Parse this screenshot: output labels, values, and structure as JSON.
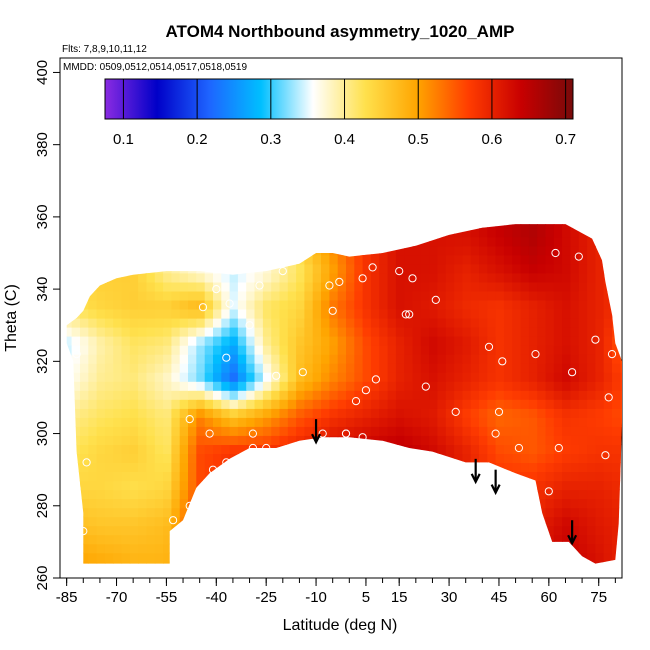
{
  "chart_data": {
    "type": "heatmap",
    "title": "ATOM4 Northbound asymmetry_1020_AMP",
    "flights_note": "Flts: 7,8,9,10,11,12",
    "dates_note": "MMDD: 0509,0512,0514,0517,0518,0519",
    "xlabel": "Latitude (deg N)",
    "ylabel": "Theta (C)",
    "xlim": [
      -87,
      82
    ],
    "ylim": [
      260,
      404
    ],
    "x_ticks": [
      -85,
      -70,
      -55,
      -40,
      -25,
      -10,
      5,
      15,
      30,
      45,
      60,
      75
    ],
    "y_ticks": [
      260,
      280,
      300,
      320,
      340,
      360,
      380,
      400
    ],
    "colorbar": {
      "range": [
        0.075,
        0.71
      ],
      "ticks": [
        0.1,
        0.2,
        0.3,
        0.4,
        0.5,
        0.6,
        0.7
      ],
      "colors": [
        "#8a2be2",
        "#0000c8",
        "#1e64ff",
        "#00bfff",
        "#ffffff",
        "#ffe14d",
        "#ffa500",
        "#ff3c00",
        "#c80000",
        "#780a0a"
      ]
    },
    "region_outline": [
      [
        -85,
        330
      ],
      [
        -82,
        332
      ],
      [
        -80,
        334
      ],
      [
        -78,
        338
      ],
      [
        -75,
        341
      ],
      [
        -70,
        343
      ],
      [
        -65,
        344
      ],
      [
        -55,
        345
      ],
      [
        -45,
        345
      ],
      [
        -35,
        344
      ],
      [
        -25,
        345
      ],
      [
        -15,
        347
      ],
      [
        -10,
        350
      ],
      [
        -5,
        350
      ],
      [
        0,
        349
      ],
      [
        10,
        350
      ],
      [
        20,
        352
      ],
      [
        30,
        355
      ],
      [
        40,
        357
      ],
      [
        50,
        358
      ],
      [
        55,
        358
      ],
      [
        65,
        358
      ],
      [
        73,
        354
      ],
      [
        76,
        348
      ],
      [
        77,
        342
      ],
      [
        79,
        333
      ],
      [
        80,
        325
      ],
      [
        82,
        320
      ],
      [
        82,
        303
      ],
      [
        81,
        275
      ],
      [
        80,
        265
      ],
      [
        74,
        264
      ],
      [
        70,
        266
      ],
      [
        66,
        270
      ],
      [
        61,
        270
      ],
      [
        58,
        278
      ],
      [
        56,
        287
      ],
      [
        50,
        289
      ],
      [
        42,
        292
      ],
      [
        35,
        292
      ],
      [
        25,
        295
      ],
      [
        18,
        296
      ],
      [
        10,
        298
      ],
      [
        0,
        299
      ],
      [
        -8,
        299
      ],
      [
        -15,
        298
      ],
      [
        -22,
        296
      ],
      [
        -30,
        296
      ],
      [
        -36,
        293
      ],
      [
        -42,
        289
      ],
      [
        -46,
        285
      ],
      [
        -50,
        276
      ],
      [
        -54,
        273
      ],
      [
        -54,
        264
      ],
      [
        -80,
        264
      ],
      [
        -80,
        278
      ],
      [
        -82,
        295
      ],
      [
        -83,
        320
      ],
      [
        -85,
        325
      ]
    ],
    "grid_field": {
      "x": [
        -85,
        -75,
        -65,
        -55,
        -45,
        -35,
        -25,
        -15,
        -5,
        5,
        15,
        25,
        35,
        45,
        55,
        65,
        75,
        82
      ],
      "y": [
        265,
        275,
        285,
        295,
        305,
        315,
        325,
        335,
        345,
        355
      ],
      "values": [
        [
          0.5,
          0.49,
          0.48,
          0.48,
          0.58,
          0.59,
          0.6,
          0.6,
          0.61,
          0.62,
          0.63,
          0.62,
          0.6,
          0.6,
          0.62,
          0.64,
          0.62,
          0.6
        ],
        [
          0.47,
          0.46,
          0.46,
          0.47,
          0.57,
          0.58,
          0.59,
          0.6,
          0.62,
          0.63,
          0.64,
          0.63,
          0.6,
          0.59,
          0.6,
          0.63,
          0.61,
          0.6
        ],
        [
          0.44,
          0.44,
          0.43,
          0.44,
          0.56,
          0.58,
          0.59,
          0.6,
          0.62,
          0.63,
          0.63,
          0.62,
          0.6,
          0.58,
          0.58,
          0.6,
          0.6,
          0.59
        ],
        [
          0.42,
          0.44,
          0.45,
          0.42,
          0.56,
          0.58,
          0.58,
          0.6,
          0.63,
          0.64,
          0.65,
          0.63,
          0.6,
          0.56,
          0.55,
          0.57,
          0.58,
          0.58
        ],
        [
          0.4,
          0.42,
          0.43,
          0.41,
          0.52,
          0.46,
          0.5,
          0.55,
          0.58,
          0.6,
          0.62,
          0.61,
          0.57,
          0.54,
          0.55,
          0.58,
          0.57,
          0.56
        ],
        [
          0.36,
          0.4,
          0.41,
          0.38,
          0.32,
          0.22,
          0.35,
          0.47,
          0.52,
          0.56,
          0.6,
          0.62,
          0.6,
          0.58,
          0.6,
          0.63,
          0.6,
          0.57
        ],
        [
          0.34,
          0.39,
          0.42,
          0.41,
          0.33,
          0.27,
          0.4,
          0.46,
          0.5,
          0.56,
          0.6,
          0.63,
          0.61,
          0.58,
          0.6,
          0.62,
          0.6,
          0.55
        ],
        [
          0.42,
          0.44,
          0.45,
          0.45,
          0.48,
          0.35,
          0.42,
          0.44,
          0.53,
          0.58,
          0.62,
          0.61,
          0.59,
          0.58,
          0.6,
          0.62,
          0.6,
          0.58
        ],
        [
          0.44,
          0.45,
          0.45,
          0.4,
          0.37,
          0.34,
          0.37,
          0.42,
          0.5,
          0.58,
          0.62,
          0.62,
          0.6,
          0.62,
          0.64,
          0.63,
          0.6,
          0.58
        ],
        [
          0.46,
          0.46,
          0.44,
          0.41,
          0.39,
          0.4,
          0.42,
          0.45,
          0.52,
          0.58,
          0.62,
          0.62,
          0.62,
          0.64,
          0.66,
          0.63,
          0.6,
          0.58
        ]
      ]
    },
    "observation_points": [
      [
        -82,
        322
      ],
      [
        -79,
        292
      ],
      [
        -80,
        273
      ],
      [
        -78,
        258
      ],
      [
        -53,
        276
      ],
      [
        -48,
        280
      ],
      [
        -48,
        304
      ],
      [
        -42,
        300
      ],
      [
        -41,
        290
      ],
      [
        -37,
        292
      ],
      [
        -40,
        340
      ],
      [
        -44,
        335
      ],
      [
        -36,
        336
      ],
      [
        -37,
        321
      ],
      [
        -30,
        330
      ],
      [
        -27,
        341
      ],
      [
        -29,
        300
      ],
      [
        -29,
        296
      ],
      [
        -25,
        296
      ],
      [
        -22,
        316
      ],
      [
        -20,
        345
      ],
      [
        -14,
        317
      ],
      [
        -8,
        300
      ],
      [
        -6,
        341
      ],
      [
        -5,
        334
      ],
      [
        -3,
        342
      ],
      [
        -1,
        300
      ],
      [
        -1,
        300
      ],
      [
        2,
        309
      ],
      [
        4,
        343
      ],
      [
        4,
        299
      ],
      [
        5,
        312
      ],
      [
        7,
        346
      ],
      [
        8,
        315
      ],
      [
        10,
        294
      ],
      [
        15,
        345
      ],
      [
        17,
        333
      ],
      [
        18,
        333
      ],
      [
        19,
        343
      ],
      [
        22,
        294
      ],
      [
        23,
        313
      ],
      [
        26,
        337
      ],
      [
        32,
        306
      ],
      [
        42,
        324
      ],
      [
        43,
        289
      ],
      [
        44,
        300
      ],
      [
        45,
        306
      ],
      [
        46,
        320
      ],
      [
        51,
        296
      ],
      [
        56,
        322
      ],
      [
        60,
        284
      ],
      [
        62,
        350
      ],
      [
        63,
        296
      ],
      [
        67,
        317
      ],
      [
        69,
        349
      ],
      [
        74,
        326
      ],
      [
        77,
        294
      ],
      [
        78,
        310
      ],
      [
        79,
        322
      ]
    ],
    "arrows_down": [
      [
        -10,
        304
      ],
      [
        38,
        293
      ],
      [
        44,
        290
      ],
      [
        67,
        276
      ]
    ]
  }
}
